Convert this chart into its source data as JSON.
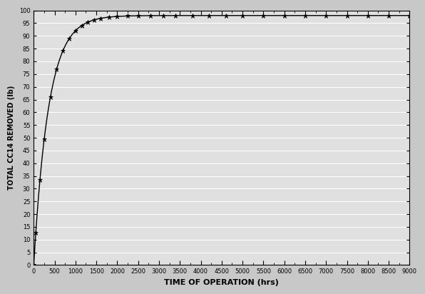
{
  "title": "",
  "xlabel": "TIME OF OPERATION (hrs)",
  "ylabel": "TOTAL CC14 REMOVED (lb)",
  "xlim": [
    0,
    9000
  ],
  "ylim": [
    0,
    100
  ],
  "xticks_major": [
    0,
    500,
    1000,
    1500,
    2000,
    2500,
    3000,
    3500,
    4000,
    4500,
    5000,
    5500,
    6000,
    6500,
    7000,
    7500,
    8000,
    8500,
    9000
  ],
  "xticks_minor": [
    250,
    750,
    1250,
    1750,
    2250,
    2750,
    3250,
    3750,
    4250,
    4750,
    5250,
    5750,
    6250,
    6750,
    7250,
    7750,
    8250,
    8750
  ],
  "yticks": [
    0,
    5,
    10,
    15,
    20,
    25,
    30,
    35,
    40,
    45,
    50,
    55,
    60,
    65,
    70,
    75,
    80,
    85,
    90,
    95,
    100
  ],
  "curve_A": 98.0,
  "curve_b": 0.0028,
  "data_points_x": [
    0,
    50,
    150,
    250,
    400,
    550,
    700,
    850,
    1000,
    1150,
    1300,
    1450,
    1600,
    1800,
    2000,
    2250,
    2500,
    2800,
    3100,
    3400,
    3800,
    4200,
    4600,
    5000,
    5500,
    6000,
    6500,
    7000,
    7500,
    8000,
    8500,
    9000
  ],
  "background_color": "#c8c8c8",
  "plot_bg_color": "#e0e0e0",
  "line_color": "#000000",
  "marker_color": "#000000",
  "grid_color": "#ffffff",
  "xlabel_fontsize": 8,
  "ylabel_fontsize": 7,
  "tick_fontsize": 6
}
